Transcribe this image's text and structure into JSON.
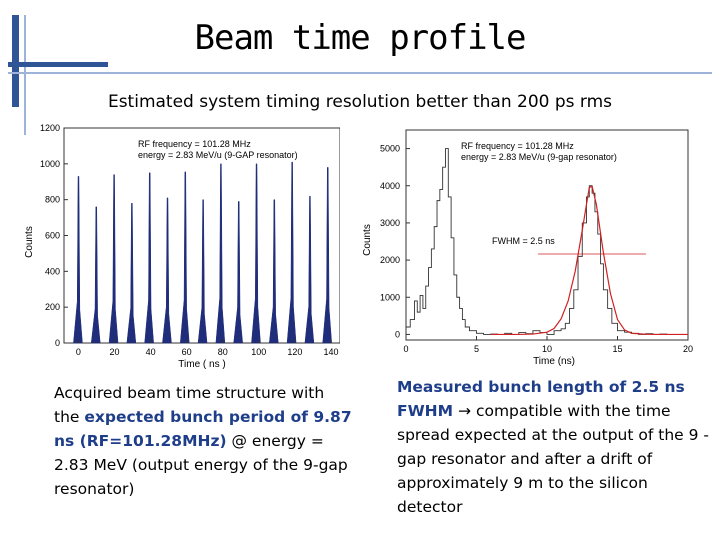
{
  "slide": {
    "title": "Beam time profile",
    "subtitle": "Estimated system timing resolution better than 200 ps rms"
  },
  "chart_data": [
    {
      "type": "bar",
      "annotations": [
        "RF frequency = 101.28 MHz",
        "energy = 2.83 MeV/u (9-GAP resonator)"
      ],
      "xlabel": "Time ( ns )",
      "ylabel": "Counts",
      "xlim": [
        -8,
        145
      ],
      "ylim": [
        0,
        1200
      ],
      "xticks": [
        0,
        20,
        40,
        60,
        80,
        100,
        120,
        140
      ],
      "yticks": [
        0,
        200,
        400,
        600,
        800,
        1000,
        1200
      ],
      "series": [
        {
          "peak_times": [
            0.0,
            9.87,
            19.74,
            29.61,
            39.48,
            49.35,
            59.22,
            69.09,
            78.96,
            88.83,
            98.7,
            108.57,
            118.44,
            128.31,
            138.18
          ],
          "peak_counts": [
            930,
            760,
            940,
            780,
            950,
            810,
            955,
            800,
            1000,
            790,
            1000,
            800,
            1010,
            820,
            980
          ],
          "color": "#1f2d7a"
        }
      ]
    },
    {
      "type": "line",
      "annotations": [
        "RF frequency = 101.28 MHz",
        "energy = 2.83 MeV/u (9-gap resonator)",
        "FWHM = 2.5 ns"
      ],
      "xlabel": "Time (ns)",
      "ylabel": "Counts",
      "xlim": [
        0,
        20
      ],
      "ylim": [
        -150,
        5500
      ],
      "xticks": [
        0,
        5,
        10,
        15,
        20
      ],
      "yticks": [
        0,
        1000,
        2000,
        3000,
        4000,
        5000
      ],
      "series": [
        {
          "kind": "histogram",
          "color": "#333333",
          "x": [
            0.0,
            0.3,
            0.6,
            0.8,
            1.0,
            1.2,
            1.4,
            1.6,
            1.8,
            2.0,
            2.2,
            2.4,
            2.6,
            2.8,
            3.0,
            3.2,
            3.4,
            3.6,
            3.8,
            4.0,
            4.2,
            4.5,
            5.0,
            5.5,
            6.0,
            6.5,
            7.0,
            7.5,
            8.0,
            8.5,
            9.0,
            9.5,
            10.0,
            10.5,
            11.0,
            11.3,
            11.6,
            11.9,
            12.2,
            12.5,
            12.8,
            13.0,
            13.2,
            13.4,
            13.6,
            13.8,
            14.0,
            14.3,
            14.6,
            15.0,
            15.5,
            16.0,
            16.5,
            17.0,
            17.5,
            18.0,
            18.5,
            19.0,
            19.5,
            20.0
          ],
          "y": [
            200,
            400,
            900,
            600,
            1050,
            700,
            1300,
            1800,
            2300,
            2900,
            3600,
            3900,
            4500,
            5000,
            3700,
            2600,
            1600,
            1000,
            700,
            400,
            200,
            100,
            30,
            0,
            10,
            0,
            30,
            0,
            50,
            20,
            100,
            50,
            0,
            100,
            150,
            300,
            700,
            1200,
            2100,
            3000,
            3700,
            4000,
            3800,
            3300,
            2700,
            1900,
            1200,
            700,
            300,
            100,
            60,
            30,
            0,
            20,
            0,
            10,
            0,
            0,
            0,
            0
          ]
        },
        {
          "kind": "gaussian-fit",
          "color": "#d02020",
          "x": [
            6.0,
            7.0,
            8.0,
            9.0,
            10.0,
            10.5,
            11.0,
            11.5,
            12.0,
            12.5,
            12.8,
            13.0,
            13.2,
            13.5,
            14.0,
            14.5,
            15.0,
            15.5,
            16.0,
            17.0,
            18.0,
            19.0,
            20.0
          ],
          "y": [
            0,
            0,
            0,
            10,
            60,
            160,
            420,
            900,
            1700,
            2800,
            3500,
            3950,
            3980,
            3500,
            2200,
            1100,
            400,
            120,
            30,
            5,
            0,
            0,
            0
          ]
        }
      ]
    }
  ],
  "captions": {
    "left": {
      "p1": "Acquired beam time structure with the ",
      "hl": "expected bunch period of 9.87 ns (RF=101.28MHz)",
      "p2": "  @ energy = 2.83 MeV (output energy of the 9-gap resonator)"
    },
    "right": {
      "hl": "Measured bunch length of 2.5 ns FWHM",
      "arrow": "→",
      "p2": " compatible with the time spread expected at the output of the 9 -gap resonator and after a drift of approximately 9 m to the silicon detector"
    }
  }
}
